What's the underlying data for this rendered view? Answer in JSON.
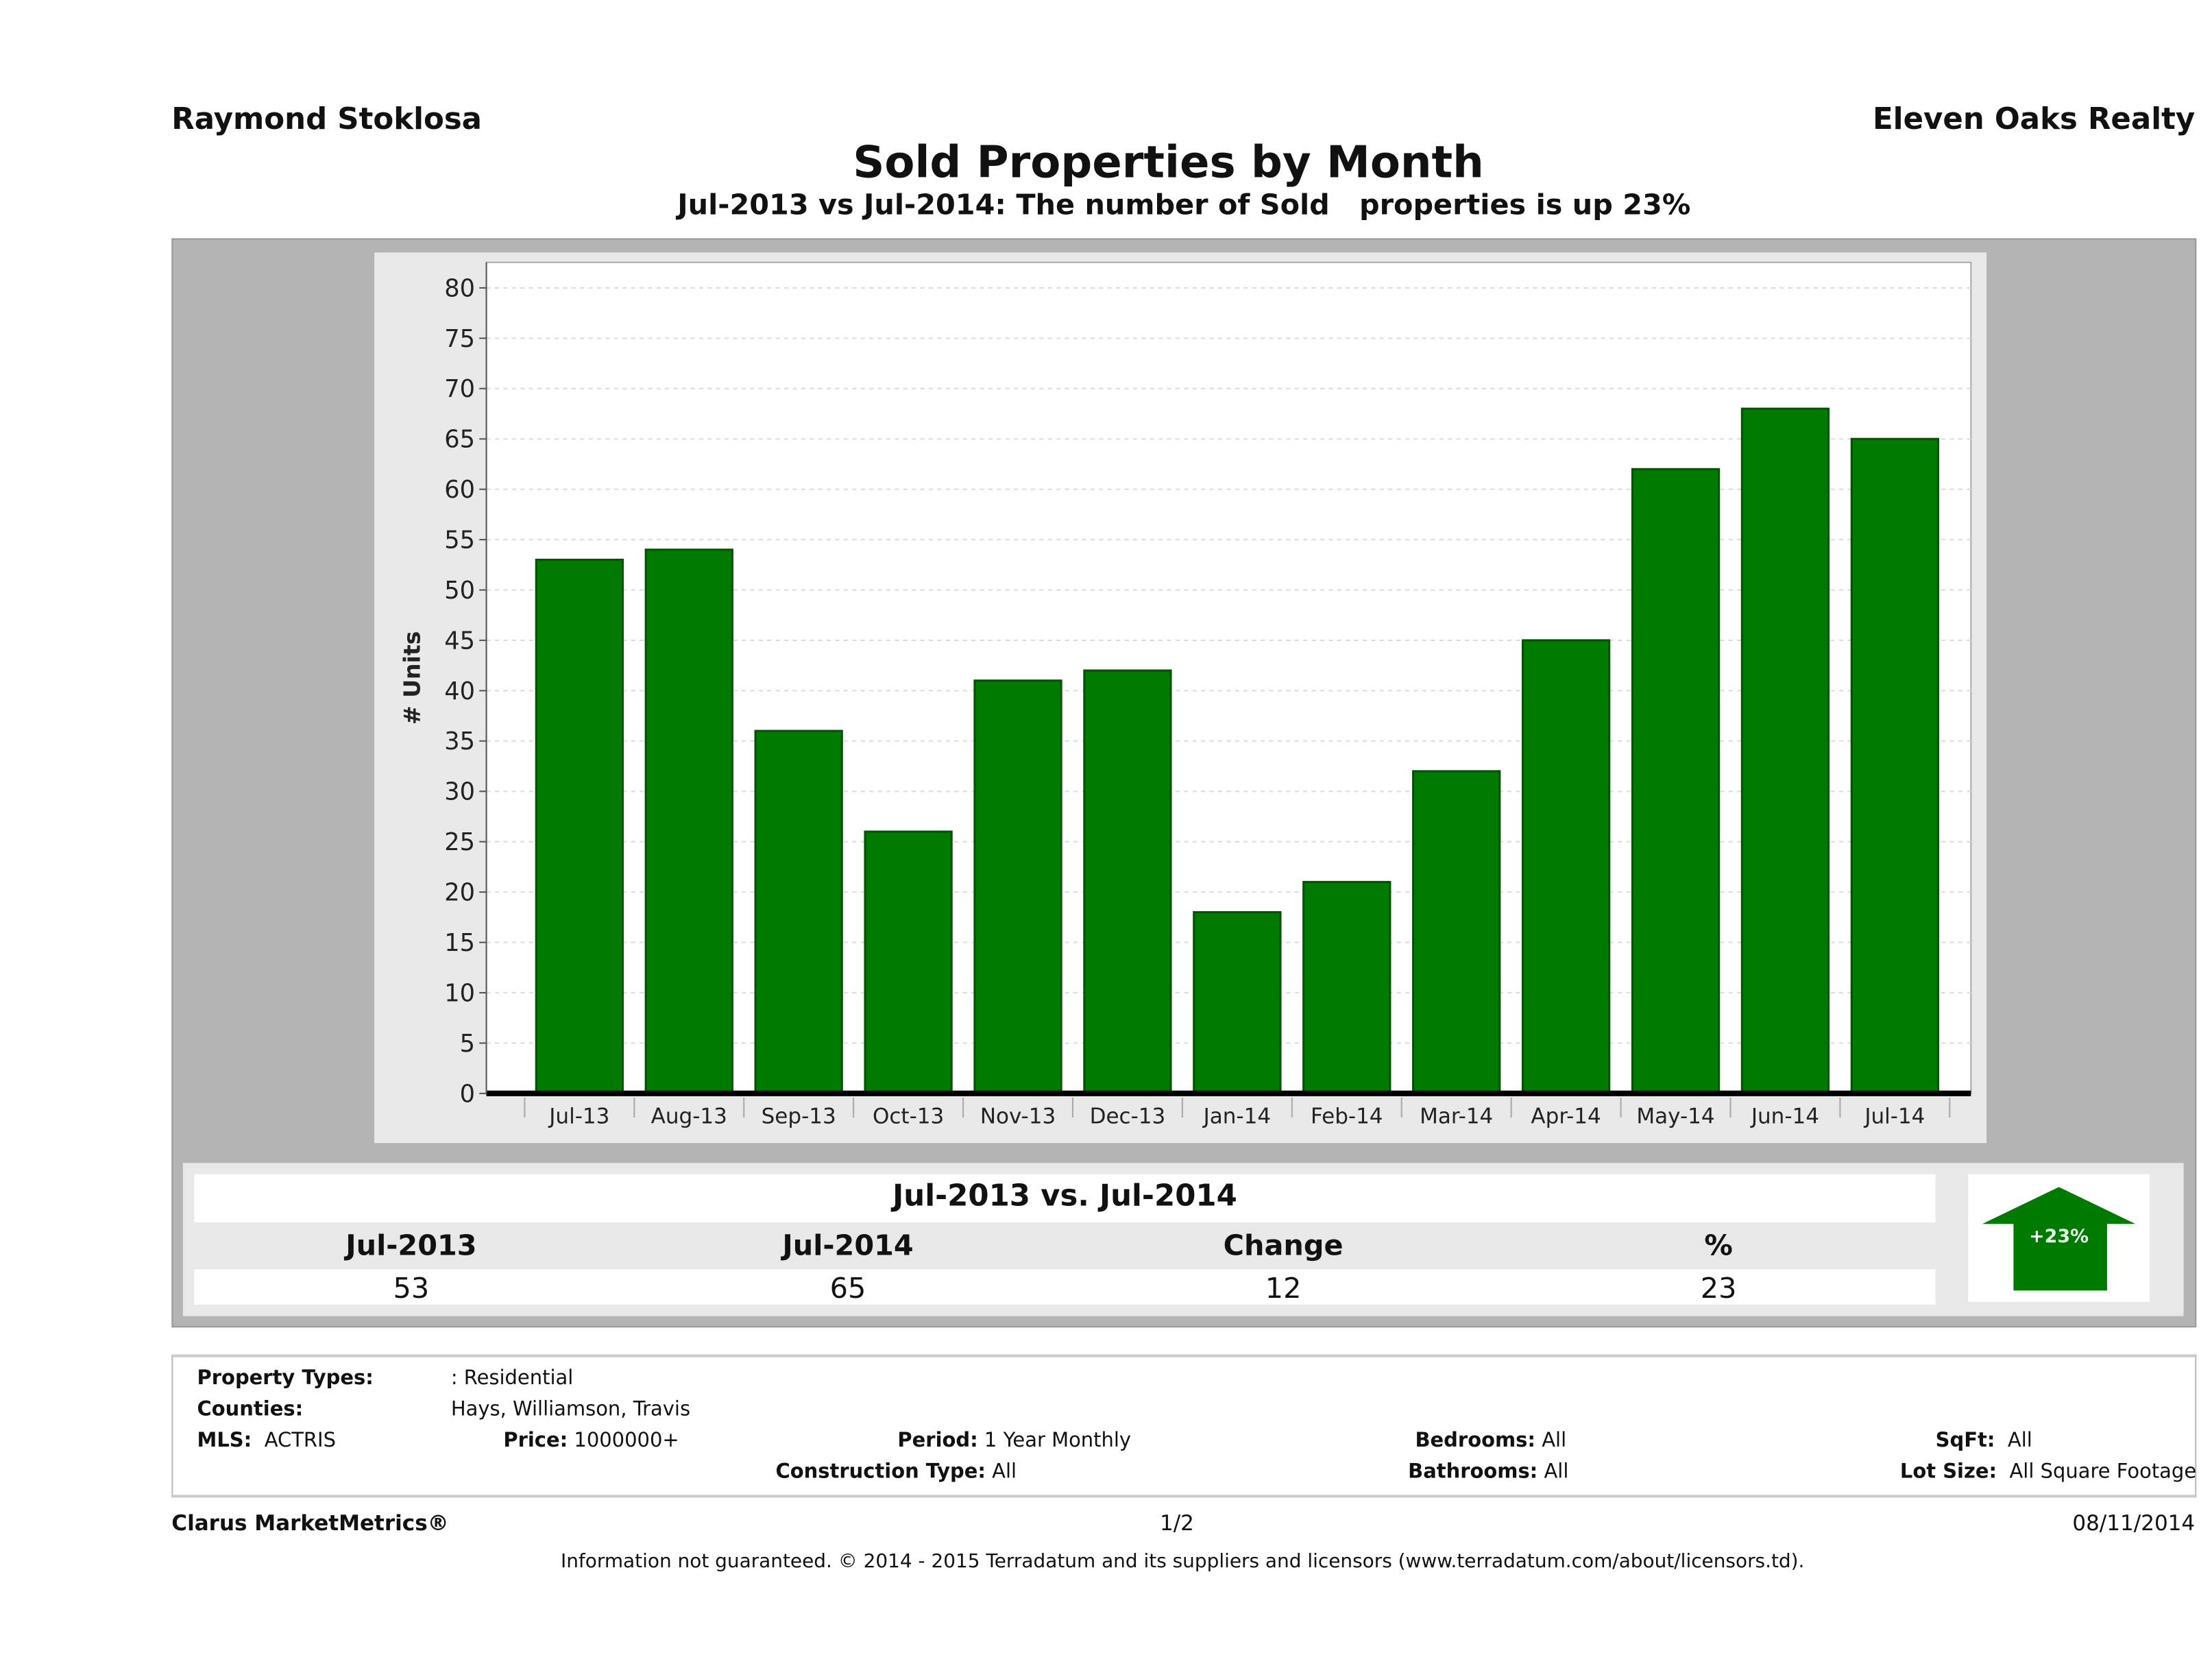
{
  "header": {
    "agent": "Raymond Stoklosa",
    "brokerage": "Eleven Oaks Realty"
  },
  "chart_data": {
    "type": "bar",
    "title": "Sold Properties by Month",
    "subtitle": "Jul-2013 vs Jul-2014: The number of Sold   properties is up 23%",
    "ylabel": "# Units",
    "xlabel": "",
    "ylim": [
      0,
      80
    ],
    "ytick_step": 5,
    "grid": true,
    "bar_color": "#007a00",
    "categories": [
      "Jul-13",
      "Aug-13",
      "Sep-13",
      "Oct-13",
      "Nov-13",
      "Dec-13",
      "Jan-14",
      "Feb-14",
      "Mar-14",
      "Apr-14",
      "May-14",
      "Jun-14",
      "Jul-14"
    ],
    "values": [
      53,
      54,
      36,
      26,
      41,
      42,
      18,
      21,
      32,
      45,
      62,
      68,
      65
    ]
  },
  "summary": {
    "title": "Jul-2013 vs. Jul-2014",
    "headers": [
      "Jul-2013",
      "Jul-2014",
      "Change",
      "%"
    ],
    "values": [
      "53",
      "65",
      "12",
      "23"
    ],
    "badge": "+23%",
    "badge_icon": "up-arrow-icon",
    "badge_color": "#007a00"
  },
  "info": {
    "property_types_label": "Property Types:",
    "property_types": ": Residential",
    "counties_label": "Counties:",
    "counties": "Hays, Williamson, Travis",
    "mls_label": "MLS:",
    "mls": "ACTRIS",
    "price_label": "Price:",
    "price": "1000000+",
    "period_label": "Period:",
    "period": "1 Year Monthly",
    "construction_label": "Construction Type:",
    "construction": "All",
    "bedrooms_label": "Bedrooms:",
    "bedrooms": "All",
    "bathrooms_label": "Bathrooms:",
    "bathrooms": "All",
    "sqft_label": "SqFt:",
    "sqft": "All",
    "lotsize_label": "Lot Size:",
    "lotsize": "All Square Footage"
  },
  "footer": {
    "product": "Clarus MarketMetrics®",
    "page": "1/2",
    "date": "08/11/2014",
    "disclaimer": "Information not guaranteed. © 2014 - 2015 Terradatum and its suppliers and licensors (www.terradatum.com/about/licensors.td)."
  }
}
